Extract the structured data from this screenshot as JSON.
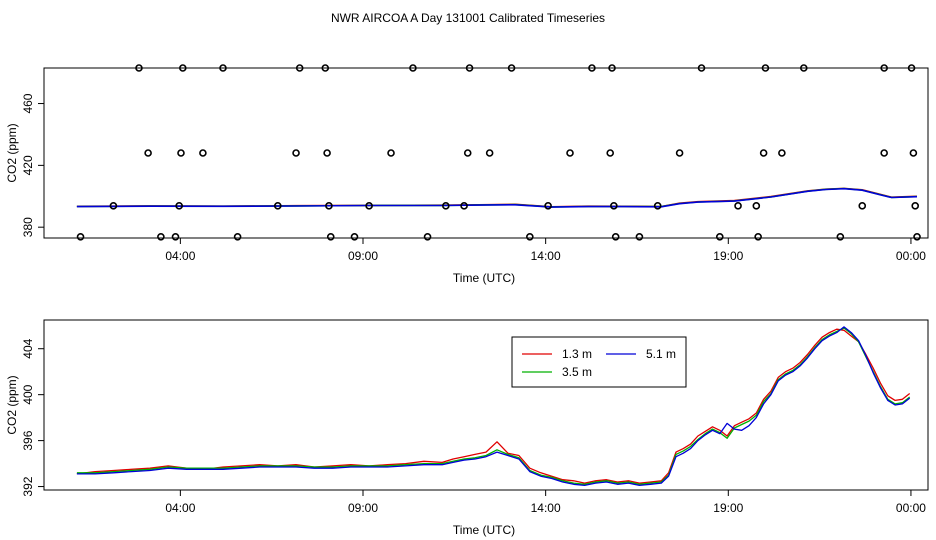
{
  "title": "NWR AIRCOA A  Day 131001  Calibrated Timeseries",
  "colors": {
    "s1": "#e00000",
    "s2": "#00b000",
    "s3": "#0000d8",
    "axis": "#000000"
  },
  "chart_data": [
    {
      "type": "scatter",
      "ylabel": "CO2 (ppm)",
      "xlabel": "Time (UTC)",
      "xlim": [
        0.1,
        24.3
      ],
      "ylim": [
        373,
        483
      ],
      "xticks": [
        {
          "v": 3.833,
          "label": "04:00"
        },
        {
          "v": 8.833,
          "label": "09:00"
        },
        {
          "v": 13.833,
          "label": "14:00"
        },
        {
          "v": 18.833,
          "label": "19:00"
        },
        {
          "v": 23.833,
          "label": "00:00"
        }
      ],
      "yticks": [
        {
          "v": 380,
          "label": "380"
        },
        {
          "v": 420,
          "label": "420"
        },
        {
          "v": 460,
          "label": "460"
        }
      ],
      "points": [
        [
          1.1,
          373.8
        ],
        [
          2.0,
          393.8
        ],
        [
          2.7,
          483
        ],
        [
          2.95,
          428
        ],
        [
          3.3,
          373.8
        ],
        [
          3.8,
          393.8
        ],
        [
          3.7,
          373.8
        ],
        [
          3.85,
          428
        ],
        [
          3.9,
          483
        ],
        [
          4.45,
          428
        ],
        [
          5.0,
          483
        ],
        [
          5.4,
          373.8
        ],
        [
          6.5,
          393.8
        ],
        [
          7.0,
          428
        ],
        [
          7.1,
          483
        ],
        [
          7.8,
          483
        ],
        [
          7.85,
          428
        ],
        [
          7.9,
          393.8
        ],
        [
          7.95,
          373.8
        ],
        [
          8.6,
          373.8
        ],
        [
          9.0,
          393.8
        ],
        [
          9.6,
          428
        ],
        [
          10.2,
          483
        ],
        [
          10.6,
          373.8
        ],
        [
          11.1,
          393.8
        ],
        [
          11.6,
          393.8
        ],
        [
          11.7,
          428
        ],
        [
          11.75,
          483
        ],
        [
          12.3,
          428
        ],
        [
          12.9,
          483
        ],
        [
          13.4,
          373.8
        ],
        [
          13.9,
          393.8
        ],
        [
          14.5,
          428
        ],
        [
          15.1,
          483
        ],
        [
          15.6,
          428
        ],
        [
          15.65,
          483
        ],
        [
          15.7,
          393.8
        ],
        [
          15.75,
          373.8
        ],
        [
          16.4,
          373.8
        ],
        [
          16.9,
          393.8
        ],
        [
          17.5,
          428
        ],
        [
          18.1,
          483
        ],
        [
          18.6,
          373.8
        ],
        [
          19.1,
          393.8
        ],
        [
          19.6,
          393.8
        ],
        [
          19.65,
          373.8
        ],
        [
          19.8,
          428
        ],
        [
          19.85,
          483
        ],
        [
          20.3,
          428
        ],
        [
          20.9,
          483
        ],
        [
          21.9,
          373.8
        ],
        [
          22.5,
          393.8
        ],
        [
          23.1,
          428
        ],
        [
          23.1,
          483
        ],
        [
          23.85,
          483
        ],
        [
          23.9,
          428
        ],
        [
          23.95,
          393.8
        ],
        [
          24.0,
          373.8
        ]
      ],
      "series": [
        {
          "name": "1.3 m",
          "color": "#e00000",
          "x": [
            1.0,
            3,
            5,
            7,
            9,
            11,
            12,
            13,
            14,
            15,
            16,
            17,
            17.5,
            18,
            19,
            20,
            21,
            21.5,
            22,
            22.5,
            23,
            23.3,
            24
          ],
          "y": [
            393.5,
            393.8,
            393.6,
            393.9,
            394.1,
            394.2,
            394.5,
            394.8,
            393.2,
            393.6,
            393.5,
            393.4,
            395.5,
            396.5,
            397.2,
            399.8,
            403.5,
            404.6,
            405.1,
            404.2,
            401.2,
            399.4,
            400
          ]
        },
        {
          "name": "3.5 m",
          "color": "#00b000",
          "x": [
            1.0,
            3,
            5,
            7,
            9,
            11,
            12,
            13,
            14,
            15,
            16,
            17,
            17.5,
            18,
            19,
            20,
            21,
            21.5,
            22,
            22.5,
            23,
            23.3,
            24
          ],
          "y": [
            393.4,
            393.7,
            393.6,
            393.8,
            394.0,
            394.1,
            394.4,
            394.6,
            393.1,
            393.4,
            393.4,
            393.3,
            395.3,
            396.3,
            397.0,
            399.6,
            403.3,
            404.5,
            405.0,
            404.0,
            401.0,
            399.3,
            399.8
          ]
        },
        {
          "name": "5.1 m",
          "color": "#0000d8",
          "x": [
            1.0,
            3,
            5,
            7,
            9,
            11,
            12,
            13,
            14,
            15,
            16,
            17,
            17.5,
            18,
            19,
            20,
            21,
            21.5,
            22,
            22.5,
            23,
            23.3,
            24
          ],
          "y": [
            393.3,
            393.6,
            393.5,
            393.7,
            394.0,
            394.0,
            394.3,
            394.5,
            393.0,
            393.3,
            393.3,
            393.2,
            395.2,
            396.2,
            396.9,
            399.5,
            403.2,
            404.4,
            404.9,
            403.9,
            400.9,
            399.2,
            399.7
          ]
        }
      ]
    },
    {
      "type": "line",
      "ylabel": "CO2 (ppm)",
      "xlabel": "Time (UTC)",
      "xlim": [
        0.1,
        24.3
      ],
      "ylim": [
        391.7,
        406.5
      ],
      "xticks": [
        {
          "v": 3.833,
          "label": "04:00"
        },
        {
          "v": 8.833,
          "label": "09:00"
        },
        {
          "v": 13.833,
          "label": "14:00"
        },
        {
          "v": 18.833,
          "label": "19:00"
        },
        {
          "v": 23.833,
          "label": "00:00"
        }
      ],
      "yticks": [
        {
          "v": 392,
          "label": "392"
        },
        {
          "v": 396,
          "label": "396"
        },
        {
          "v": 400,
          "label": "400"
        },
        {
          "v": 404,
          "label": "404"
        }
      ],
      "legend": {
        "position": "top-center",
        "entries": [
          "1.3 m",
          "3.5 m",
          "5.1 m"
        ]
      },
      "series": [
        {
          "name": "1.3 m",
          "color": "#e00000",
          "x": [
            1.0,
            1.5,
            2,
            2.5,
            3,
            3.5,
            4,
            4.5,
            5,
            5.5,
            6,
            6.5,
            7,
            7.5,
            8,
            8.5,
            9,
            9.5,
            10,
            10.5,
            11,
            11.3,
            11.6,
            11.9,
            12.2,
            12.5,
            12.8,
            13.1,
            13.4,
            13.7,
            14,
            14.3,
            14.6,
            14.9,
            15.2,
            15.5,
            15.8,
            16.1,
            16.4,
            16.7,
            17,
            17.2,
            17.4,
            17.6,
            17.8,
            18,
            18.2,
            18.4,
            18.6,
            18.8,
            19,
            19.2,
            19.4,
            19.6,
            19.8,
            20,
            20.2,
            20.4,
            20.6,
            20.8,
            21,
            21.2,
            21.4,
            21.6,
            21.8,
            22,
            22.2,
            22.4,
            22.6,
            22.8,
            23,
            23.2,
            23.4,
            23.6,
            23.8
          ],
          "y": [
            393.1,
            393.3,
            393.4,
            393.5,
            393.6,
            393.8,
            393.6,
            393.5,
            393.7,
            393.8,
            393.9,
            393.8,
            393.9,
            393.7,
            393.8,
            393.9,
            393.8,
            393.9,
            394.0,
            394.2,
            394.1,
            394.4,
            394.6,
            394.8,
            395.0,
            395.9,
            394.9,
            394.7,
            393.6,
            393.2,
            392.9,
            392.6,
            392.5,
            392.3,
            392.5,
            392.6,
            392.4,
            392.5,
            392.3,
            392.4,
            392.5,
            393.2,
            395.0,
            395.3,
            395.7,
            396.4,
            396.8,
            397.2,
            396.9,
            396.4,
            397.3,
            397.6,
            397.9,
            398.4,
            399.6,
            400.3,
            401.5,
            402.0,
            402.3,
            402.8,
            403.5,
            404.3,
            405.0,
            405.4,
            405.7,
            405.6,
            405.1,
            404.6,
            403.5,
            402.3,
            401.0,
            399.9,
            399.5,
            399.6,
            400.1
          ]
        },
        {
          "name": "3.5 m",
          "color": "#00b000",
          "x": [
            1.0,
            1.5,
            2,
            2.5,
            3,
            3.5,
            4,
            4.5,
            5,
            5.5,
            6,
            6.5,
            7,
            7.5,
            8,
            8.5,
            9,
            9.5,
            10,
            10.5,
            11,
            11.3,
            11.6,
            11.9,
            12.2,
            12.5,
            12.8,
            13.1,
            13.4,
            13.7,
            14,
            14.3,
            14.6,
            14.9,
            15.2,
            15.5,
            15.8,
            16.1,
            16.4,
            16.7,
            17,
            17.2,
            17.4,
            17.6,
            17.8,
            18,
            18.2,
            18.4,
            18.6,
            18.8,
            19,
            19.2,
            19.4,
            19.6,
            19.8,
            20,
            20.2,
            20.4,
            20.6,
            20.8,
            21,
            21.2,
            21.4,
            21.6,
            21.8,
            22,
            22.2,
            22.4,
            22.6,
            22.8,
            23,
            23.2,
            23.4,
            23.6,
            23.8
          ],
          "y": [
            393.2,
            393.2,
            393.3,
            393.4,
            393.5,
            393.7,
            393.6,
            393.6,
            393.6,
            393.7,
            393.8,
            393.8,
            393.8,
            393.7,
            393.7,
            393.8,
            393.8,
            393.8,
            393.9,
            394.0,
            394.0,
            394.2,
            394.4,
            394.5,
            394.7,
            395.2,
            394.8,
            394.5,
            393.4,
            393.0,
            392.8,
            392.5,
            392.3,
            392.2,
            392.4,
            392.5,
            392.3,
            392.4,
            392.2,
            392.3,
            392.4,
            393.0,
            394.8,
            395.1,
            395.5,
            396.1,
            396.6,
            397.0,
            396.7,
            396.2,
            397.1,
            397.4,
            397.7,
            398.2,
            399.4,
            400.1,
            401.3,
            401.8,
            402.1,
            402.6,
            403.3,
            404.1,
            404.8,
            405.2,
            405.5,
            405.8,
            405.3,
            404.6,
            403.3,
            402.0,
            400.7,
            399.6,
            399.2,
            399.3,
            399.8
          ]
        },
        {
          "name": "5.1 m",
          "color": "#0000d8",
          "x": [
            1.0,
            1.5,
            2,
            2.5,
            3,
            3.5,
            4,
            4.5,
            5,
            5.5,
            6,
            6.5,
            7,
            7.5,
            8,
            8.5,
            9,
            9.5,
            10,
            10.5,
            11,
            11.3,
            11.6,
            11.9,
            12.2,
            12.5,
            12.8,
            13.1,
            13.4,
            13.7,
            14,
            14.3,
            14.6,
            14.9,
            15.2,
            15.5,
            15.8,
            16.1,
            16.4,
            16.7,
            17,
            17.2,
            17.4,
            17.6,
            17.8,
            18,
            18.2,
            18.4,
            18.6,
            18.8,
            19,
            19.2,
            19.4,
            19.6,
            19.8,
            20,
            20.2,
            20.4,
            20.6,
            20.8,
            21,
            21.2,
            21.4,
            21.6,
            21.8,
            22,
            22.2,
            22.4,
            22.6,
            22.8,
            23,
            23.2,
            23.4,
            23.6,
            23.8
          ],
          "y": [
            393.1,
            393.1,
            393.2,
            393.3,
            393.4,
            393.6,
            393.5,
            393.5,
            393.5,
            393.6,
            393.7,
            393.7,
            393.7,
            393.6,
            393.6,
            393.7,
            393.7,
            393.7,
            393.8,
            393.9,
            393.9,
            394.1,
            394.3,
            394.4,
            394.6,
            395.0,
            394.7,
            394.4,
            393.3,
            392.9,
            392.7,
            392.4,
            392.2,
            392.1,
            392.3,
            392.4,
            392.2,
            392.3,
            392.1,
            392.2,
            392.3,
            392.9,
            394.6,
            394.9,
            395.3,
            396.0,
            396.5,
            396.9,
            396.6,
            397.5,
            397.0,
            396.9,
            397.3,
            398.0,
            399.2,
            400.0,
            401.2,
            401.7,
            402.0,
            402.5,
            403.2,
            404.0,
            404.7,
            405.1,
            405.4,
            405.9,
            405.4,
            404.7,
            403.4,
            401.9,
            400.6,
            399.5,
            399.1,
            399.2,
            399.7
          ]
        }
      ]
    }
  ]
}
